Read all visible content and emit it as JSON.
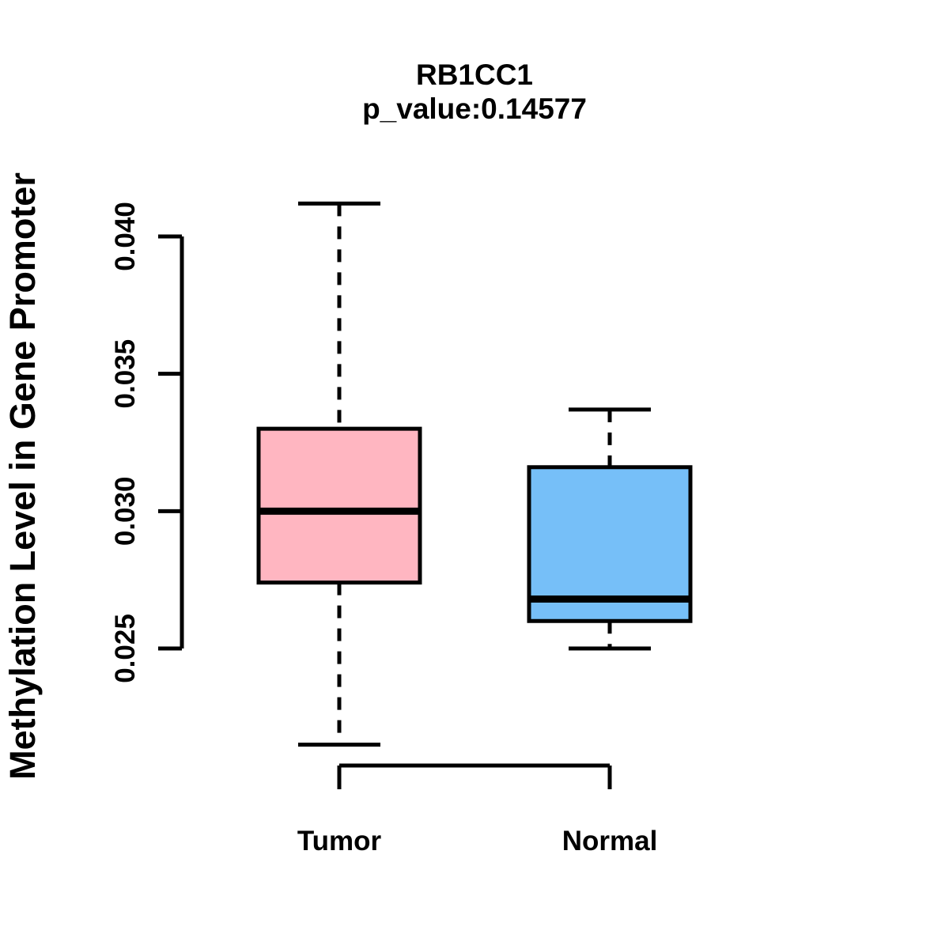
{
  "page": {
    "background": "#FFFFFF"
  },
  "chart_data": {
    "type": "boxplot",
    "title": "RB1CC1",
    "subtitle": "p_value:0.14577",
    "ylabel": "Methylation Level in Gene Promoter",
    "xlabel": "",
    "categories": [
      "Tumor",
      "Normal"
    ],
    "y_ticks": [
      0.025,
      0.03,
      0.035,
      0.04
    ],
    "y_tick_labels": [
      "0.025",
      "0.030",
      "0.035",
      "0.040"
    ],
    "ylim": [
      0.025,
      0.04
    ],
    "grid": false,
    "legend": "none",
    "line_color": "#000000",
    "whisker_style": "dashed",
    "series": [
      {
        "name": "Tumor",
        "color": "#FFB6C1",
        "whisker_low": 0.0215,
        "q1": 0.0274,
        "median": 0.03,
        "q3": 0.033,
        "whisker_high": 0.0412
      },
      {
        "name": "Normal",
        "color": "#76BFF8",
        "whisker_low": 0.025,
        "q1": 0.026,
        "median": 0.0268,
        "q3": 0.0316,
        "whisker_high": 0.0337
      }
    ]
  }
}
